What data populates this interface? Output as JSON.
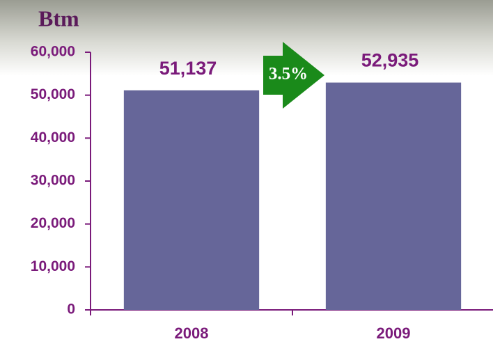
{
  "chart_data": {
    "type": "bar",
    "title": "Btm",
    "categories": [
      "2008",
      "2009"
    ],
    "values": [
      51137,
      52935
    ],
    "value_labels": [
      "51,137",
      "52,935"
    ],
    "color": "#666699",
    "annotation": "3.5%",
    "ylim": [
      0,
      60000
    ],
    "yticks": [
      0,
      {
        "value": 10000,
        "label": "10,000"
      },
      {
        "value": 20000,
        "label": "20,000"
      },
      {
        "value": 30000,
        "label": "30,000"
      },
      {
        "value": 40000,
        "label": "40,000"
      },
      {
        "value": 50000,
        "label": "50,000"
      },
      {
        "value": 60000,
        "label": "60,000"
      }
    ]
  }
}
